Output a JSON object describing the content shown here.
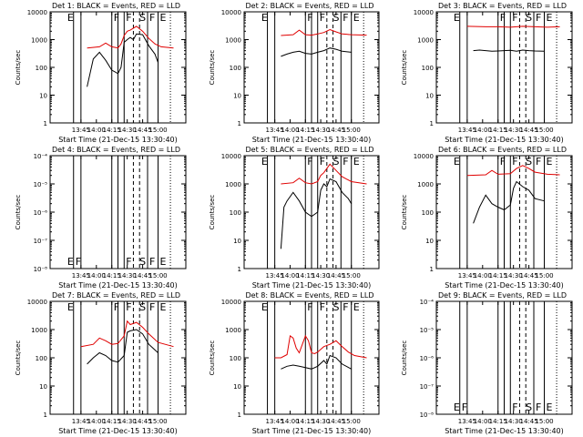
{
  "page": {
    "background": "#ffffff"
  },
  "colors": {
    "events": "#000000",
    "lld": "#e00000"
  },
  "chart_data": [
    {
      "type": "line",
      "title": "Det 1: BLACK = Events, RED = LLD",
      "xlabel": "Start Time (21-Dec-15 13:30:40)",
      "ylabel": "Counts/sec",
      "yscale": "log",
      "ylim": [
        1,
        10000
      ],
      "ytick_labels": [
        "1",
        "10",
        "100",
        "1000",
        "10000"
      ],
      "xtick_labels": [
        "13:45",
        "14:00",
        "14:15",
        "14:30",
        "14:45",
        "15:00"
      ],
      "markers": [
        {
          "label": "E",
          "x": 13.25
        },
        {
          "label": "F",
          "x": 14.0
        },
        {
          "label": "F",
          "x": 14.2
        },
        {
          "label": "S",
          "x": 14.42
        },
        {
          "label": "F",
          "x": 14.58
        },
        {
          "label": "E",
          "x": 14.75
        }
      ],
      "series": [
        {
          "color": "#e00000",
          "x": [
            13.6,
            13.8,
            13.9,
            14.0,
            14.1,
            14.15,
            14.2,
            14.25,
            14.3,
            14.4,
            14.5,
            14.6,
            14.7,
            14.8,
            15.0
          ],
          "values": [
            500,
            550,
            750,
            550,
            500,
            700,
            1400,
            2000,
            2200,
            3000,
            2000,
            1100,
            700,
            550,
            500
          ]
        },
        {
          "color": "#000000",
          "x": [
            13.6,
            13.7,
            13.8,
            13.9,
            14.0,
            14.1,
            14.15,
            14.2,
            14.25,
            14.3,
            14.35,
            14.4,
            14.5,
            14.6,
            14.7,
            14.75
          ],
          "values": [
            20,
            200,
            350,
            180,
            80,
            60,
            100,
            800,
            1000,
            1200,
            1000,
            1600,
            1500,
            600,
            300,
            150
          ]
        }
      ]
    },
    {
      "type": "line",
      "title": "Det 2: BLACK = Events, RED = LLD",
      "xlabel": "Start Time (21-Dec-15 13:30:40)",
      "ylabel": "Counts/sec",
      "yscale": "log",
      "ylim": [
        1,
        10000
      ],
      "ytick_labels": [
        "1",
        "10",
        "100",
        "1000",
        "10000"
      ],
      "xtick_labels": [
        "13:45",
        "14:00",
        "14:15",
        "14:30",
        "14:45",
        "15:00"
      ],
      "markers": [
        {
          "label": "E",
          "x": 13.25
        },
        {
          "label": "F",
          "x": 14.0
        },
        {
          "label": "F",
          "x": 14.2
        },
        {
          "label": "S",
          "x": 14.42
        },
        {
          "label": "F",
          "x": 14.58
        },
        {
          "label": "E",
          "x": 14.75
        }
      ],
      "series": [
        {
          "color": "#e00000",
          "x": [
            13.6,
            13.8,
            13.9,
            14.0,
            14.1,
            14.2,
            14.3,
            14.4,
            14.5,
            14.6,
            14.75,
            15.0
          ],
          "values": [
            1400,
            1500,
            2200,
            1500,
            1450,
            1600,
            1800,
            2300,
            1900,
            1600,
            1500,
            1450
          ]
        },
        {
          "color": "#000000",
          "x": [
            13.6,
            13.7,
            13.8,
            13.9,
            14.0,
            14.1,
            14.2,
            14.3,
            14.4,
            14.5,
            14.6,
            14.75
          ],
          "values": [
            250,
            300,
            350,
            380,
            320,
            300,
            350,
            400,
            500,
            450,
            380,
            350
          ]
        }
      ]
    },
    {
      "type": "line",
      "title": "Det 3: BLACK = Events, RED = LLD",
      "xlabel": "Start Time (21-Dec-15 13:30:40)",
      "ylabel": "Counts/sec",
      "yscale": "log",
      "ylim": [
        1,
        10000
      ],
      "ytick_labels": [
        "1",
        "10",
        "100",
        "1000",
        "10000"
      ],
      "xtick_labels": [
        "13:45",
        "14:00",
        "14:15",
        "14:30",
        "14:45",
        "15:00"
      ],
      "markers": [
        {
          "label": "E",
          "x": 13.25
        },
        {
          "label": "F",
          "x": 14.0
        },
        {
          "label": "F",
          "x": 14.2
        },
        {
          "label": "S",
          "x": 14.42
        },
        {
          "label": "F",
          "x": 14.58
        },
        {
          "label": "E",
          "x": 14.75
        }
      ],
      "series": [
        {
          "color": "#e00000",
          "x": [
            13.5,
            13.8,
            14.0,
            14.2,
            14.4,
            14.6,
            14.8,
            15.0
          ],
          "values": [
            3000,
            2900,
            2900,
            2800,
            3000,
            2900,
            2800,
            2900
          ]
        },
        {
          "color": "#000000",
          "x": [
            13.6,
            13.7,
            13.8,
            13.9,
            14.0,
            14.1,
            14.2,
            14.3,
            14.4,
            14.5,
            14.6,
            14.75
          ],
          "values": [
            400,
            420,
            400,
            380,
            390,
            400,
            410,
            380,
            420,
            400,
            390,
            380
          ]
        }
      ]
    },
    {
      "type": "line",
      "title": "Det 4: BLACK = Events, RED = LLD",
      "xlabel": "Start Time (21-Dec-15 13:30:40)",
      "ylabel": "Counts/sec",
      "yscale": "log",
      "ylim": [
        1e-08,
        0.0001
      ],
      "ytick_labels": [
        "10⁻⁸",
        "10⁻⁷",
        "10⁻⁶",
        "10⁻⁵",
        "10⁻⁴"
      ],
      "xtick_labels": [
        "13:45",
        "14:00",
        "14:15",
        "14:30",
        "14:45",
        "15:00"
      ],
      "markers": [
        {
          "label": "E",
          "x": 13.25
        },
        {
          "label": "F",
          "x": 13.38
        },
        {
          "label": "F",
          "x": 14.2
        },
        {
          "label": "S",
          "x": 14.42
        },
        {
          "label": "F",
          "x": 14.58
        },
        {
          "label": "E",
          "x": 14.75
        }
      ],
      "series": []
    },
    {
      "type": "line",
      "title": "Det 5: BLACK = Events, RED = LLD",
      "xlabel": "Start Time (21-Dec-15 13:30:40)",
      "ylabel": "Counts/sec",
      "yscale": "log",
      "ylim": [
        1,
        10000
      ],
      "ytick_labels": [
        "1",
        "10",
        "100",
        "1000",
        "10000"
      ],
      "xtick_labels": [
        "13:45",
        "14:00",
        "14:15",
        "14:30",
        "14:45",
        "15:00"
      ],
      "markers": [
        {
          "label": "E",
          "x": 13.25
        },
        {
          "label": "F",
          "x": 14.0
        },
        {
          "label": "F",
          "x": 14.2
        },
        {
          "label": "S",
          "x": 14.42
        },
        {
          "label": "F",
          "x": 14.58
        },
        {
          "label": "E",
          "x": 14.75
        }
      ],
      "series": [
        {
          "color": "#e00000",
          "x": [
            13.6,
            13.8,
            13.9,
            14.0,
            14.1,
            14.2,
            14.25,
            14.3,
            14.4,
            14.5,
            14.6,
            14.75,
            15.0
          ],
          "values": [
            1000,
            1100,
            1600,
            1100,
            1000,
            1200,
            2000,
            2500,
            5000,
            3000,
            1800,
            1200,
            1000
          ]
        },
        {
          "color": "#000000",
          "x": [
            13.6,
            13.65,
            13.7,
            13.8,
            13.9,
            14.0,
            14.1,
            14.2,
            14.25,
            14.3,
            14.35,
            14.4,
            14.5,
            14.6,
            14.7,
            14.75
          ],
          "values": [
            5,
            150,
            250,
            500,
            250,
            100,
            70,
            100,
            600,
            1000,
            800,
            1500,
            1200,
            500,
            300,
            200
          ]
        }
      ]
    },
    {
      "type": "line",
      "title": "Det 6: BLACK = Events, RED = LLD",
      "xlabel": "Start Time (21-Dec-15 13:30:40)",
      "ylabel": "Counts/sec",
      "yscale": "log",
      "ylim": [
        1,
        10000
      ],
      "ytick_labels": [
        "1",
        "10",
        "100",
        "1000",
        "10000"
      ],
      "xtick_labels": [
        "13:45",
        "14:00",
        "14:15",
        "14:30",
        "14:45",
        "15:00"
      ],
      "markers": [
        {
          "label": "E",
          "x": 13.25
        },
        {
          "label": "F",
          "x": 14.0
        },
        {
          "label": "F",
          "x": 14.2
        },
        {
          "label": "S",
          "x": 14.42
        },
        {
          "label": "F",
          "x": 14.58
        },
        {
          "label": "E",
          "x": 14.75
        }
      ],
      "series": [
        {
          "color": "#e00000",
          "x": [
            13.5,
            13.8,
            13.9,
            14.0,
            14.2,
            14.3,
            14.4,
            14.5,
            14.6,
            14.8,
            15.0
          ],
          "values": [
            2000,
            2100,
            3000,
            2200,
            2300,
            3500,
            4500,
            3500,
            2600,
            2200,
            2100
          ]
        },
        {
          "color": "#000000",
          "x": [
            13.6,
            13.7,
            13.8,
            13.9,
            14.0,
            14.1,
            14.2,
            14.25,
            14.3,
            14.4,
            14.5,
            14.6,
            14.75
          ],
          "values": [
            40,
            150,
            400,
            200,
            150,
            120,
            180,
            700,
            1200,
            800,
            600,
            300,
            250
          ]
        }
      ]
    },
    {
      "type": "line",
      "title": "Det 7: BLACK = Events, RED = LLD",
      "xlabel": "Start Time (21-Dec-15 13:30:40)",
      "ylabel": "Counts/sec",
      "yscale": "log",
      "ylim": [
        1,
        10000
      ],
      "ytick_labels": [
        "1",
        "10",
        "100",
        "1000",
        "10000"
      ],
      "xtick_labels": [
        "13:45",
        "14:00",
        "14:15",
        "14:30",
        "14:45",
        "15:00"
      ],
      "markers": [
        {
          "label": "E",
          "x": 13.25
        },
        {
          "label": "F",
          "x": 14.0
        },
        {
          "label": "F",
          "x": 14.2
        },
        {
          "label": "S",
          "x": 14.42
        },
        {
          "label": "F",
          "x": 14.58
        },
        {
          "label": "E",
          "x": 14.75
        }
      ],
      "series": [
        {
          "color": "#e00000",
          "x": [
            13.5,
            13.7,
            13.8,
            13.9,
            14.0,
            14.1,
            14.2,
            14.25,
            14.3,
            14.4,
            14.5,
            14.6,
            14.75,
            15.0
          ],
          "values": [
            250,
            300,
            500,
            400,
            300,
            320,
            600,
            2000,
            1500,
            1800,
            1200,
            700,
            350,
            250
          ]
        },
        {
          "color": "#000000",
          "x": [
            13.6,
            13.7,
            13.8,
            13.9,
            14.0,
            14.1,
            14.2,
            14.25,
            14.3,
            14.4,
            14.5,
            14.6,
            14.75
          ],
          "values": [
            60,
            100,
            150,
            120,
            80,
            70,
            120,
            800,
            900,
            1000,
            700,
            300,
            150
          ]
        }
      ]
    },
    {
      "type": "line",
      "title": "Det 8: BLACK = Events, RED = LLD",
      "xlabel": "Start Time (21-Dec-15 13:30:40)",
      "ylabel": "Counts/sec",
      "yscale": "log",
      "ylim": [
        1,
        10000
      ],
      "ytick_labels": [
        "1",
        "10",
        "100",
        "1000",
        "10000"
      ],
      "xtick_labels": [
        "13:45",
        "14:00",
        "14:15",
        "14:30",
        "14:45",
        "15:00"
      ],
      "markers": [
        {
          "label": "E",
          "x": 13.25
        },
        {
          "label": "F",
          "x": 14.0
        },
        {
          "label": "F",
          "x": 14.2
        },
        {
          "label": "S",
          "x": 14.42
        },
        {
          "label": "F",
          "x": 14.58
        },
        {
          "label": "E",
          "x": 14.75
        }
      ],
      "series": [
        {
          "color": "#e00000",
          "x": [
            13.5,
            13.6,
            13.7,
            13.75,
            13.8,
            13.85,
            13.9,
            14.0,
            14.05,
            14.1,
            14.15,
            14.2,
            14.3,
            14.4,
            14.5,
            14.6,
            14.7,
            14.8,
            15.0
          ],
          "values": [
            100,
            100,
            130,
            600,
            500,
            220,
            150,
            600,
            400,
            150,
            140,
            160,
            250,
            300,
            400,
            250,
            160,
            120,
            100
          ]
        },
        {
          "color": "#000000",
          "x": [
            13.6,
            13.7,
            13.8,
            13.9,
            14.0,
            14.1,
            14.2,
            14.3,
            14.35,
            14.4,
            14.5,
            14.6,
            14.75
          ],
          "values": [
            40,
            50,
            55,
            50,
            45,
            40,
            50,
            80,
            60,
            120,
            100,
            60,
            40
          ]
        }
      ]
    },
    {
      "type": "line",
      "title": "Det 9: BLACK = Events, RED = LLD",
      "xlabel": "Start Time (21-Dec-15 13:30:40)",
      "ylabel": "Counts/sec",
      "yscale": "log",
      "ylim": [
        1e-08,
        0.0001
      ],
      "ytick_labels": [
        "10⁻⁸",
        "10⁻⁷",
        "10⁻⁶",
        "10⁻⁵",
        "10⁻⁴"
      ],
      "xtick_labels": [
        "13:45",
        "14:00",
        "14:15",
        "14:30",
        "14:45",
        "15:00"
      ],
      "markers": [
        {
          "label": "E",
          "x": 13.25
        },
        {
          "label": "F",
          "x": 13.38
        },
        {
          "label": "F",
          "x": 14.2
        },
        {
          "label": "S",
          "x": 14.42
        },
        {
          "label": "F",
          "x": 14.58
        },
        {
          "label": "E",
          "x": 14.75
        }
      ],
      "series": []
    }
  ]
}
